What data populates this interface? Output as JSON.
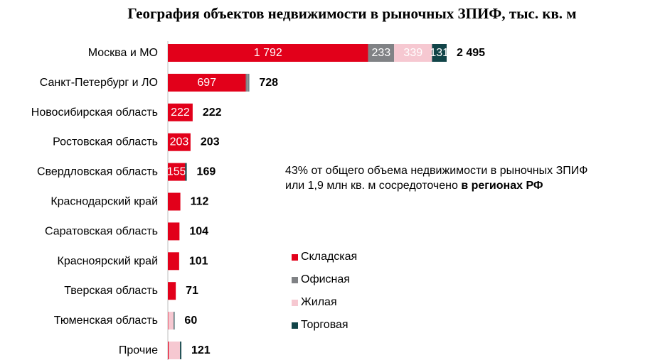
{
  "chart_data": {
    "type": "bar",
    "orientation": "horizontal",
    "stacked": true,
    "title": "География объектов недвижимости в рыночных ЗПИФ, тыс. кв. м",
    "categories": [
      "Москва и МО",
      "Санкт-Петербург и ЛО",
      "Новосибирская область",
      "Ростовская область",
      "Свердловская область",
      "Краснодарский край",
      "Саратовская область",
      "Красноярский край",
      "Тверская область",
      "Тюменская область",
      "Прочие"
    ],
    "series": [
      {
        "name": "Складская",
        "color": "#e2001a",
        "values": [
          1792,
          697,
          222,
          203,
          155,
          112,
          104,
          101,
          71,
          3,
          8
        ]
      },
      {
        "name": "Офисная",
        "color": "#808285",
        "values": [
          233,
          21,
          0,
          0,
          0,
          0,
          0,
          0,
          0,
          0,
          0
        ]
      },
      {
        "name": "Жилая",
        "color": "#f6c8d1",
        "values": [
          339,
          4,
          0,
          0,
          0,
          0,
          0,
          0,
          0,
          50,
          101
        ]
      },
      {
        "name": "Торговая",
        "color": "#114448",
        "values": [
          131,
          6,
          0,
          0,
          14,
          0,
          0,
          0,
          0,
          7,
          12
        ]
      }
    ],
    "segment_labels": [
      [
        "1 792",
        "233",
        "339",
        "131"
      ],
      [
        "697",
        "",
        "",
        ""
      ],
      [
        "222",
        "",
        "",
        ""
      ],
      [
        "203",
        "",
        "",
        ""
      ],
      [
        "155",
        "",
        "",
        ""
      ],
      [
        "",
        "",
        "",
        ""
      ],
      [
        "",
        "",
        "",
        ""
      ],
      [
        "",
        "",
        "",
        ""
      ],
      [
        "",
        "",
        "",
        ""
      ],
      [
        "",
        "",
        "",
        ""
      ],
      [
        "",
        "",
        "",
        ""
      ]
    ],
    "totals": [
      "2 495",
      "728",
      "222",
      "203",
      "169",
      "112",
      "104",
      "101",
      "71",
      "60",
      "121"
    ],
    "legend_position": "right",
    "grid": false,
    "annotation": {
      "line1": "43% от общего объема недвижимости в рыночных ЗПИФ",
      "line2_prefix": "или 1,9 млн кв. м сосредоточено ",
      "line2_bold": "в регионах РФ"
    }
  }
}
